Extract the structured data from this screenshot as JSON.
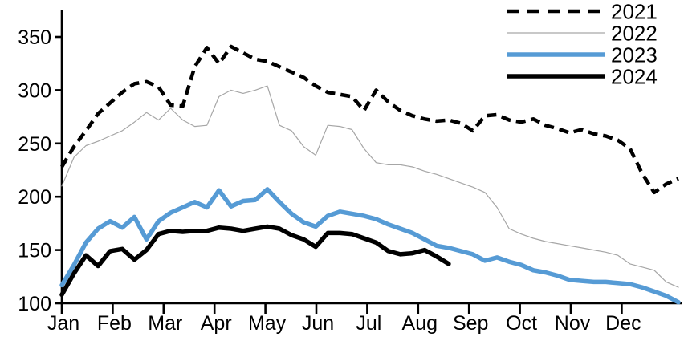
{
  "chart_data": {
    "type": "line",
    "title": "",
    "xlabel": "",
    "ylabel": "",
    "x_unit": "week of year",
    "x_tick_labels": [
      "Jan",
      "Feb",
      "Mar",
      "Apr",
      "May",
      "Jun",
      "Jul",
      "Aug",
      "Sep",
      "Oct",
      "Nov",
      "Dec"
    ],
    "yticks": [
      100,
      150,
      200,
      250,
      300,
      350
    ],
    "ytick_labels": [
      "100",
      "150",
      "200",
      "250",
      "300",
      "350"
    ],
    "ylim": [
      100,
      350
    ],
    "grid": false,
    "background": "#ffffff",
    "axis_color": "#000000",
    "legend_position": "top-right",
    "series": [
      {
        "name": "2021",
        "color": "#000000",
        "line_style": "dashed",
        "line_width": 4.5,
        "values": [
          228,
          247,
          262,
          278,
          288,
          298,
          306,
          308,
          303,
          286,
          285,
          322,
          340,
          325,
          341,
          335,
          329,
          327,
          322,
          317,
          312,
          304,
          298,
          296,
          294,
          281,
          300,
          289,
          281,
          276,
          273,
          271,
          272,
          269,
          262,
          276,
          277,
          272,
          270,
          273,
          267,
          264,
          260,
          263,
          259,
          257,
          253,
          245,
          222,
          204,
          212,
          217
        ]
      },
      {
        "name": "2022",
        "color": "#A6A6A6",
        "line_style": "solid",
        "line_width": 1.2,
        "values": [
          210,
          237,
          248,
          252,
          257,
          262,
          270,
          279,
          272,
          283,
          272,
          266,
          267,
          294,
          300,
          297,
          300,
          304,
          267,
          262,
          247,
          239,
          267,
          266,
          263,
          245,
          232,
          230,
          230,
          228,
          224,
          221,
          217,
          213,
          209,
          204,
          190,
          170,
          165,
          161,
          158,
          156,
          154,
          152,
          150,
          148,
          145,
          137,
          134,
          131,
          120,
          115
        ]
      },
      {
        "name": "2023",
        "color": "#569BD5",
        "line_style": "solid",
        "line_width": 5.5,
        "values": [
          117,
          136,
          157,
          170,
          177,
          171,
          181,
          160,
          177,
          185,
          190,
          195,
          190,
          206,
          191,
          196,
          197,
          207,
          195,
          184,
          176,
          172,
          182,
          186,
          184,
          182,
          179,
          174,
          170,
          166,
          160,
          154,
          152,
          149,
          146,
          140,
          143,
          139,
          136,
          131,
          129,
          126,
          122,
          121,
          120,
          120,
          119,
          118,
          115,
          111,
          107,
          101
        ]
      },
      {
        "name": "2024",
        "color": "#000000",
        "line_style": "solid",
        "line_width": 5.5,
        "values": [
          108,
          128,
          145,
          135,
          149,
          151,
          141,
          150,
          165,
          168,
          167,
          168,
          168,
          171,
          170,
          168,
          170,
          172,
          170,
          164,
          160,
          153,
          166,
          166,
          165,
          161,
          157,
          149,
          146,
          147,
          150,
          144,
          137
        ]
      }
    ]
  }
}
